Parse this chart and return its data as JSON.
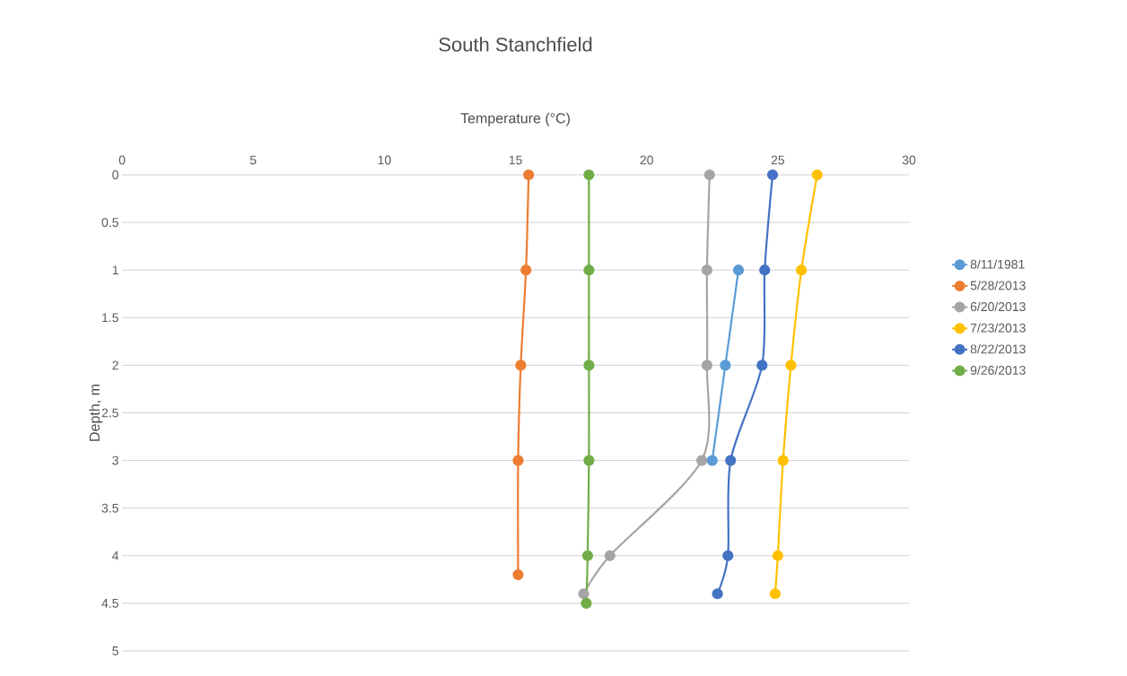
{
  "chart_data": {
    "type": "line",
    "title": "South Stanchfield",
    "xlabel": "Temperature (°C)",
    "ylabel": "Depth, m",
    "xlim": [
      0,
      30
    ],
    "xticks": [
      0,
      5,
      10,
      15,
      20,
      25,
      30
    ],
    "ylim": [
      5,
      0
    ],
    "yticks": [
      0,
      0.5,
      1,
      1.5,
      2,
      2.5,
      3,
      3.5,
      4,
      4.5,
      5
    ],
    "grid": "y",
    "legend": "right",
    "marker": "circle",
    "line_style": "solid",
    "series": [
      {
        "name": "8/11/1981",
        "color": "#5b9bd5",
        "x": [
          23.5,
          23.0,
          22.5
        ],
        "values": [
          1,
          2,
          3
        ]
      },
      {
        "name": "5/28/2013",
        "color": "#ed7d31",
        "x": [
          15.5,
          15.4,
          15.2,
          15.1,
          15.1
        ],
        "values": [
          0,
          1,
          2,
          3,
          4.2
        ]
      },
      {
        "name": "6/20/2013",
        "color": "#a5a5a5",
        "x": [
          22.4,
          22.3,
          22.3,
          22.1,
          18.6,
          17.6
        ],
        "values": [
          0,
          1,
          2,
          3,
          4,
          4.4
        ]
      },
      {
        "name": "7/23/2013",
        "color": "#ffc000",
        "x": [
          26.5,
          25.9,
          25.5,
          25.2,
          25.0,
          24.9
        ],
        "values": [
          0,
          1,
          2,
          3,
          4,
          4.4
        ]
      },
      {
        "name": "8/22/2013",
        "color": "#4472c4",
        "x": [
          24.8,
          24.5,
          24.4,
          23.2,
          23.1,
          22.7
        ],
        "values": [
          0,
          1,
          2,
          3,
          4,
          4.4
        ]
      },
      {
        "name": "9/26/2013",
        "color": "#70ad47",
        "x": [
          17.8,
          17.8,
          17.8,
          17.8,
          17.75,
          17.7
        ],
        "values": [
          0,
          1,
          2,
          3,
          4,
          4.5
        ]
      }
    ]
  }
}
